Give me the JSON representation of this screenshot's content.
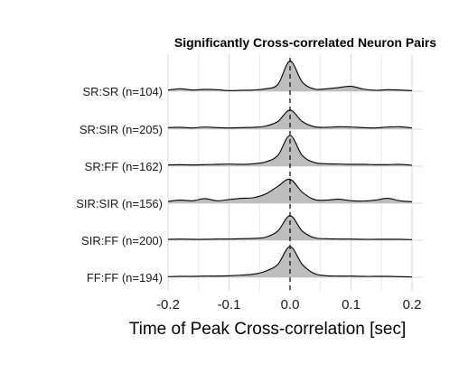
{
  "chart_data": {
    "type": "ridgeline",
    "title": "Significantly Cross-correlated Neuron Pairs",
    "xlabel": "Time of Peak Cross-correlation [sec]",
    "xlim": [
      -0.2,
      0.2
    ],
    "x_ticks": [
      -0.2,
      -0.1,
      0.0,
      0.1,
      0.2
    ],
    "x_tick_labels": [
      "-0.2",
      "-0.1",
      "0.0",
      "0.1",
      "0.2"
    ],
    "reference_line": {
      "x": 0.0,
      "style": "dashed"
    },
    "grid": true,
    "fill_color": "#bdbdbd",
    "line_color": "#000000",
    "series": [
      {
        "name": "SR:SR (n=104)",
        "x": [
          -0.2,
          -0.18,
          -0.16,
          -0.14,
          -0.12,
          -0.1,
          -0.08,
          -0.06,
          -0.04,
          -0.02,
          0.0,
          0.02,
          0.04,
          0.06,
          0.08,
          0.1,
          0.12,
          0.14,
          0.16,
          0.18,
          0.2
        ],
        "density": [
          0.04,
          0.08,
          0.04,
          0.06,
          0.05,
          0.02,
          0.03,
          0.04,
          0.08,
          0.22,
          0.98,
          0.3,
          0.07,
          0.08,
          0.12,
          0.16,
          0.07,
          0.03,
          0.05,
          0.04,
          0.02
        ]
      },
      {
        "name": "SR:SIR (n=205)",
        "x": [
          -0.2,
          -0.18,
          -0.16,
          -0.14,
          -0.12,
          -0.1,
          -0.08,
          -0.06,
          -0.04,
          -0.02,
          0.0,
          0.02,
          0.04,
          0.06,
          0.08,
          0.1,
          0.12,
          0.14,
          0.16,
          0.18,
          0.2
        ],
        "density": [
          0.05,
          0.06,
          0.04,
          0.07,
          0.05,
          0.04,
          0.05,
          0.06,
          0.1,
          0.25,
          0.62,
          0.25,
          0.08,
          0.06,
          0.08,
          0.07,
          0.05,
          0.04,
          0.07,
          0.08,
          0.04
        ]
      },
      {
        "name": "SR:FF (n=162)",
        "x": [
          -0.2,
          -0.18,
          -0.16,
          -0.14,
          -0.12,
          -0.1,
          -0.08,
          -0.06,
          -0.04,
          -0.02,
          0.0,
          0.02,
          0.04,
          0.06,
          0.08,
          0.1,
          0.12,
          0.14,
          0.16,
          0.18,
          0.2
        ],
        "density": [
          0.04,
          0.05,
          0.04,
          0.05,
          0.06,
          0.07,
          0.06,
          0.08,
          0.14,
          0.35,
          1.0,
          0.35,
          0.12,
          0.08,
          0.07,
          0.06,
          0.06,
          0.05,
          0.05,
          0.06,
          0.03
        ]
      },
      {
        "name": "SIR:SIR (n=156)",
        "x": [
          -0.2,
          -0.18,
          -0.16,
          -0.14,
          -0.12,
          -0.1,
          -0.08,
          -0.06,
          -0.04,
          -0.02,
          0.0,
          0.02,
          0.04,
          0.06,
          0.08,
          0.1,
          0.12,
          0.14,
          0.16,
          0.18,
          0.2
        ],
        "density": [
          0.06,
          0.1,
          0.08,
          0.15,
          0.08,
          0.12,
          0.16,
          0.18,
          0.3,
          0.55,
          0.78,
          0.36,
          0.12,
          0.1,
          0.13,
          0.08,
          0.07,
          0.1,
          0.16,
          0.08,
          0.05
        ]
      },
      {
        "name": "SIR:FF (n=200)",
        "x": [
          -0.2,
          -0.18,
          -0.16,
          -0.14,
          -0.12,
          -0.1,
          -0.08,
          -0.06,
          -0.04,
          -0.02,
          0.0,
          0.02,
          0.04,
          0.06,
          0.08,
          0.1,
          0.12,
          0.14,
          0.16,
          0.18,
          0.2
        ],
        "density": [
          0.03,
          0.04,
          0.03,
          0.03,
          0.04,
          0.04,
          0.05,
          0.06,
          0.1,
          0.3,
          0.8,
          0.3,
          0.08,
          0.05,
          0.04,
          0.04,
          0.03,
          0.03,
          0.03,
          0.03,
          0.02
        ]
      },
      {
        "name": "FF:FF (n=194)",
        "x": [
          -0.2,
          -0.18,
          -0.16,
          -0.14,
          -0.12,
          -0.1,
          -0.08,
          -0.06,
          -0.04,
          -0.02,
          0.0,
          0.02,
          0.04,
          0.06,
          0.08,
          0.1,
          0.12,
          0.14,
          0.16,
          0.18,
          0.2
        ],
        "density": [
          0.02,
          0.03,
          0.03,
          0.04,
          0.04,
          0.05,
          0.07,
          0.1,
          0.2,
          0.42,
          1.02,
          0.42,
          0.12,
          0.05,
          0.04,
          0.04,
          0.03,
          0.03,
          0.03,
          0.02,
          0.01
        ]
      }
    ]
  }
}
